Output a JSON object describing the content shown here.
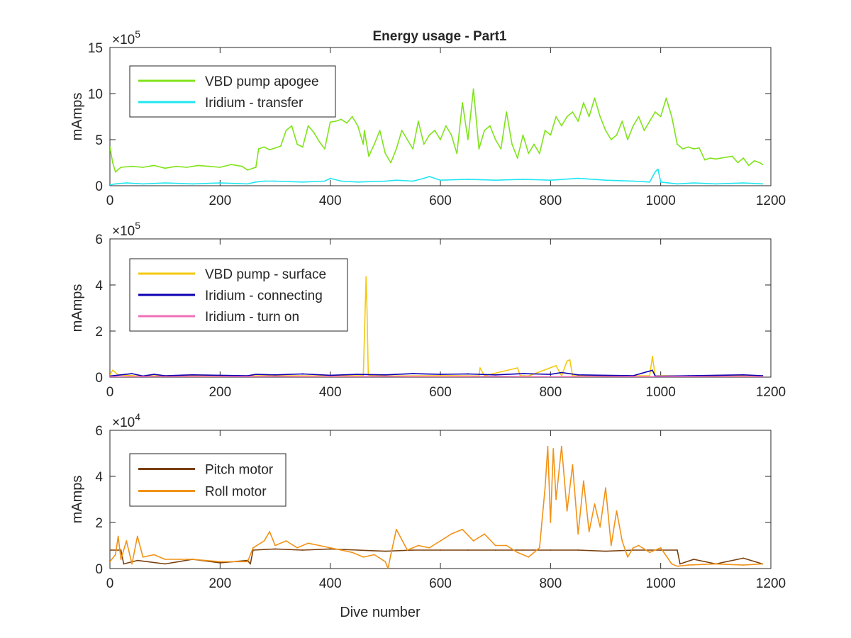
{
  "figure_title": "Energy usage - Part1",
  "chart_data": [
    {
      "type": "line",
      "title": "Energy usage - Part1",
      "xlabel": "",
      "ylabel": "mAmps",
      "xlim": [
        0,
        1200
      ],
      "ylim": [
        0,
        15
      ],
      "exponent_label": "×10",
      "exponent": "5",
      "x_ticks": [
        "0",
        "200",
        "400",
        "600",
        "800",
        "1000",
        "1200"
      ],
      "y_ticks": [
        "0",
        "5",
        "10",
        "15"
      ],
      "legend_position": "top-left",
      "grid": false,
      "series": [
        {
          "name": "VBD pump apogee",
          "color": "#7fe31a",
          "x": [
            0,
            5,
            10,
            20,
            40,
            60,
            80,
            100,
            120,
            140,
            160,
            180,
            200,
            220,
            240,
            250,
            260,
            265,
            270,
            280,
            290,
            300,
            310,
            320,
            330,
            340,
            350,
            360,
            370,
            380,
            390,
            400,
            410,
            420,
            430,
            440,
            450,
            460,
            462,
            470,
            480,
            490,
            500,
            510,
            520,
            530,
            540,
            550,
            560,
            570,
            580,
            590,
            600,
            610,
            620,
            630,
            640,
            650,
            660,
            670,
            680,
            690,
            700,
            710,
            720,
            730,
            740,
            750,
            760,
            770,
            780,
            790,
            800,
            810,
            820,
            830,
            840,
            850,
            860,
            870,
            880,
            890,
            900,
            910,
            920,
            930,
            940,
            950,
            960,
            970,
            980,
            990,
            1000,
            1010,
            1020,
            1030,
            1040,
            1050,
            1060,
            1070,
            1080,
            1090,
            1100,
            1110,
            1120,
            1130,
            1140,
            1150,
            1160,
            1170,
            1180,
            1185
          ],
          "values": [
            4.2,
            2.5,
            1.5,
            2.0,
            2.1,
            2.0,
            2.2,
            1.9,
            2.1,
            2.0,
            2.2,
            2.1,
            2.0,
            2.3,
            2.1,
            1.7,
            1.9,
            2.0,
            4.0,
            4.2,
            3.9,
            4.1,
            4.3,
            6.0,
            6.5,
            4.5,
            4.2,
            6.5,
            5.8,
            4.8,
            4.0,
            6.9,
            7.0,
            7.2,
            6.8,
            7.5,
            6.5,
            4.5,
            6.0,
            3.2,
            4.5,
            6.0,
            3.5,
            2.5,
            4.0,
            6.0,
            5.0,
            4.0,
            7.0,
            4.5,
            5.5,
            6.0,
            5.0,
            6.5,
            5.5,
            3.5,
            9.0,
            5.0,
            10.5,
            4.0,
            6.0,
            6.5,
            5.0,
            4.0,
            8.0,
            4.5,
            3.0,
            5.5,
            3.5,
            4.5,
            3.5,
            6.0,
            5.5,
            7.5,
            6.5,
            7.5,
            8.0,
            7.0,
            9.0,
            7.5,
            9.5,
            7.5,
            6.0,
            5.0,
            5.5,
            7.0,
            5.0,
            6.5,
            7.5,
            6.0,
            7.0,
            8.0,
            7.5,
            9.5,
            7.5,
            4.5,
            4.0,
            4.2,
            4.0,
            4.1,
            2.8,
            3.0,
            2.9,
            3.0,
            3.1,
            3.2,
            2.5,
            3.0,
            2.2,
            2.7,
            2.5,
            2.3
          ]
        },
        {
          "name": "Iridium - transfer",
          "color": "#1fe6f2",
          "x": [
            0,
            10,
            30,
            60,
            100,
            150,
            200,
            250,
            265,
            280,
            300,
            350,
            390,
            400,
            420,
            450,
            500,
            520,
            550,
            570,
            580,
            600,
            650,
            700,
            750,
            800,
            850,
            900,
            950,
            980,
            990,
            995,
            1000,
            1030,
            1060,
            1100,
            1150,
            1185
          ],
          "values": [
            0.1,
            0.2,
            0.3,
            0.2,
            0.3,
            0.2,
            0.3,
            0.2,
            0.4,
            0.5,
            0.5,
            0.4,
            0.5,
            0.8,
            0.5,
            0.4,
            0.5,
            0.6,
            0.5,
            0.8,
            1.0,
            0.6,
            0.7,
            0.6,
            0.7,
            0.6,
            0.8,
            0.6,
            0.5,
            0.4,
            1.5,
            1.8,
            0.4,
            0.2,
            0.3,
            0.2,
            0.3,
            0.2
          ]
        }
      ]
    },
    {
      "type": "line",
      "title": "",
      "xlabel": "",
      "ylabel": "mAmps",
      "xlim": [
        0,
        1200
      ],
      "ylim": [
        0,
        6
      ],
      "exponent_label": "×10",
      "exponent": "5",
      "x_ticks": [
        "0",
        "200",
        "400",
        "600",
        "800",
        "1000",
        "1200"
      ],
      "y_ticks": [
        "0",
        "2",
        "4",
        "6"
      ],
      "legend_position": "top-left",
      "grid": false,
      "series": [
        {
          "name": "VBD pump - surface",
          "color": "#f5c90f",
          "x": [
            0,
            5,
            15,
            50,
            100,
            200,
            300,
            400,
            460,
            465,
            467,
            469,
            475,
            500,
            600,
            670,
            672,
            680,
            740,
            745,
            760,
            810,
            820,
            830,
            835,
            840,
            900,
            980,
            985,
            990,
            1000,
            1050,
            1100,
            1150,
            1185
          ],
          "values": [
            0.1,
            0.3,
            0.1,
            0.05,
            0.06,
            0.05,
            0.06,
            0.05,
            0.06,
            4.35,
            2.7,
            0.1,
            0.06,
            0.05,
            0.06,
            0.05,
            0.4,
            0.06,
            0.4,
            0.06,
            0.05,
            0.5,
            0.06,
            0.7,
            0.75,
            0.06,
            0.05,
            0.06,
            0.9,
            0.05,
            0.06,
            0.05,
            0.06,
            0.05,
            0.06
          ]
        },
        {
          "name": "Iridium - connecting",
          "color": "#0d00b3",
          "x": [
            0,
            20,
            40,
            60,
            80,
            100,
            150,
            200,
            250,
            265,
            300,
            350,
            400,
            450,
            500,
            550,
            600,
            650,
            700,
            750,
            800,
            820,
            850,
            900,
            950,
            985,
            990,
            1000,
            1050,
            1100,
            1150,
            1185
          ],
          "values": [
            0.05,
            0.1,
            0.15,
            0.05,
            0.12,
            0.06,
            0.1,
            0.08,
            0.06,
            0.12,
            0.1,
            0.14,
            0.08,
            0.12,
            0.1,
            0.15,
            0.12,
            0.14,
            0.1,
            0.15,
            0.12,
            0.2,
            0.1,
            0.08,
            0.06,
            0.3,
            0.05,
            0.04,
            0.06,
            0.08,
            0.1,
            0.06
          ]
        },
        {
          "name": "Iridium - turn on",
          "color": "#ef70b8",
          "x": [
            0,
            100,
            200,
            300,
            400,
            500,
            600,
            700,
            800,
            900,
            1000,
            1100,
            1185
          ],
          "values": [
            0.02,
            0.03,
            0.02,
            0.03,
            0.02,
            0.03,
            0.02,
            0.03,
            0.02,
            0.03,
            0.02,
            0.03,
            0.02
          ]
        }
      ]
    },
    {
      "type": "line",
      "title": "",
      "xlabel": "Dive number",
      "ylabel": "mAmps",
      "xlim": [
        0,
        1200
      ],
      "ylim": [
        0,
        6
      ],
      "exponent_label": "×10",
      "exponent": "4",
      "x_ticks": [
        "0",
        "200",
        "400",
        "600",
        "800",
        "1000",
        "1200"
      ],
      "y_ticks": [
        "0",
        "2",
        "4",
        "6"
      ],
      "legend_position": "top-left",
      "grid": false,
      "series": [
        {
          "name": "Pitch motor",
          "color": "#7a3f0c",
          "x": [
            0,
            20,
            25,
            50,
            100,
            150,
            200,
            250,
            255,
            260,
            300,
            350,
            400,
            450,
            500,
            550,
            600,
            650,
            700,
            750,
            800,
            850,
            900,
            950,
            1000,
            1030,
            1035,
            1060,
            1100,
            1150,
            1185
          ],
          "values": [
            0.8,
            0.8,
            0.2,
            0.35,
            0.2,
            0.4,
            0.25,
            0.35,
            0.2,
            0.8,
            0.85,
            0.8,
            0.85,
            0.8,
            0.75,
            0.8,
            0.8,
            0.8,
            0.8,
            0.8,
            0.8,
            0.8,
            0.75,
            0.8,
            0.8,
            0.8,
            0.2,
            0.4,
            0.2,
            0.45,
            0.2
          ]
        },
        {
          "name": "Roll motor",
          "color": "#f29216",
          "x": [
            0,
            10,
            15,
            20,
            30,
            40,
            50,
            60,
            80,
            100,
            150,
            200,
            250,
            260,
            280,
            290,
            300,
            320,
            340,
            360,
            380,
            400,
            420,
            440,
            460,
            480,
            500,
            505,
            510,
            520,
            540,
            560,
            580,
            600,
            620,
            640,
            660,
            680,
            700,
            720,
            740,
            760,
            780,
            790,
            795,
            800,
            805,
            810,
            820,
            830,
            840,
            850,
            860,
            870,
            880,
            890,
            900,
            910,
            920,
            930,
            940,
            950,
            960,
            980,
            1000,
            1020,
            1030,
            1050,
            1100,
            1150,
            1185
          ],
          "values": [
            0.3,
            0.6,
            1.4,
            0.4,
            1.2,
            0.2,
            1.4,
            0.5,
            0.6,
            0.4,
            0.4,
            0.3,
            0.3,
            0.9,
            1.2,
            1.6,
            1.0,
            1.2,
            0.9,
            1.1,
            1.0,
            0.9,
            0.8,
            0.7,
            0.5,
            0.6,
            0.3,
            0.0,
            0.6,
            1.7,
            0.8,
            1.0,
            0.9,
            1.2,
            1.5,
            1.7,
            1.2,
            1.5,
            1.0,
            1.0,
            0.7,
            0.5,
            0.9,
            3.5,
            5.3,
            2.0,
            5.2,
            3.0,
            5.3,
            2.5,
            4.5,
            1.5,
            3.8,
            1.6,
            2.8,
            1.8,
            3.5,
            1.0,
            2.5,
            1.2,
            0.5,
            0.9,
            1.0,
            0.7,
            0.9,
            0.2,
            0.1,
            0.15,
            0.2,
            0.15,
            0.2
          ]
        }
      ]
    }
  ]
}
